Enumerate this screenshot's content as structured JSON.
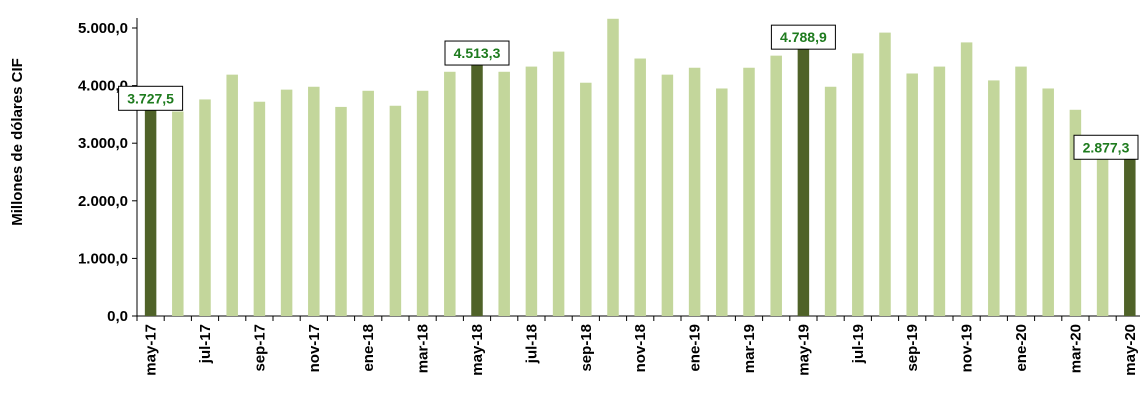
{
  "chart_data": {
    "type": "bar",
    "ylabel": "Millones de dólares CIF",
    "ylim": [
      0,
      5000
    ],
    "yticks": [
      "0,0",
      "1.000,0",
      "2.000,0",
      "3.000,0",
      "4.000,0",
      "5.000,0"
    ],
    "ytick_values": [
      0,
      1000,
      2000,
      3000,
      4000,
      5000
    ],
    "grid": false,
    "colors": {
      "highlight": "#4f6228",
      "normal": "#c3d69b",
      "label_text": "#1e7b1e"
    },
    "categories": [
      "may-17",
      "jun-17",
      "jul-17",
      "ago-17",
      "sep-17",
      "oct-17",
      "nov-17",
      "dic-17",
      "ene-18",
      "feb-18",
      "mar-18",
      "abr-18",
      "may-18",
      "jun-18",
      "jul-18",
      "ago-18",
      "sep-18",
      "oct-18",
      "nov-18",
      "dic-18",
      "ene-19",
      "feb-19",
      "mar-19",
      "abr-19",
      "may-19",
      "jun-19",
      "jul-19",
      "ago-19",
      "sep-19",
      "oct-19",
      "nov-19",
      "dic-19",
      "ene-20",
      "feb-20",
      "mar-20",
      "abr-20",
      "may-20"
    ],
    "visible_tick_labels": [
      "may-17",
      "jul-17",
      "sep-17",
      "nov-17",
      "ene-18",
      "mar-18",
      "may-18",
      "jul-18",
      "sep-18",
      "nov-18",
      "ene-19",
      "mar-19",
      "may-19",
      "jul-19",
      "sep-19",
      "nov-19",
      "ene-20",
      "mar-20",
      "may-20"
    ],
    "values": [
      3727.5,
      3550,
      3760,
      4190,
      3720,
      3930,
      3980,
      3630,
      3910,
      3650,
      3910,
      4240,
      4513.3,
      4240,
      4330,
      4590,
      4050,
      5160,
      4470,
      4190,
      4310,
      3950,
      4310,
      4520,
      4788.9,
      3980,
      4560,
      4920,
      4210,
      4330,
      4750,
      4090,
      4330,
      3950,
      3580,
      2780,
      2877.3
    ],
    "highlighted": [
      "may-17",
      "may-18",
      "may-19",
      "may-20"
    ],
    "data_labels": [
      {
        "category": "may-17",
        "text": "3.727,5"
      },
      {
        "category": "may-18",
        "text": "4.513,3"
      },
      {
        "category": "may-19",
        "text": "4.788,9"
      },
      {
        "category": "may-20",
        "text": "2.877,3"
      }
    ]
  }
}
